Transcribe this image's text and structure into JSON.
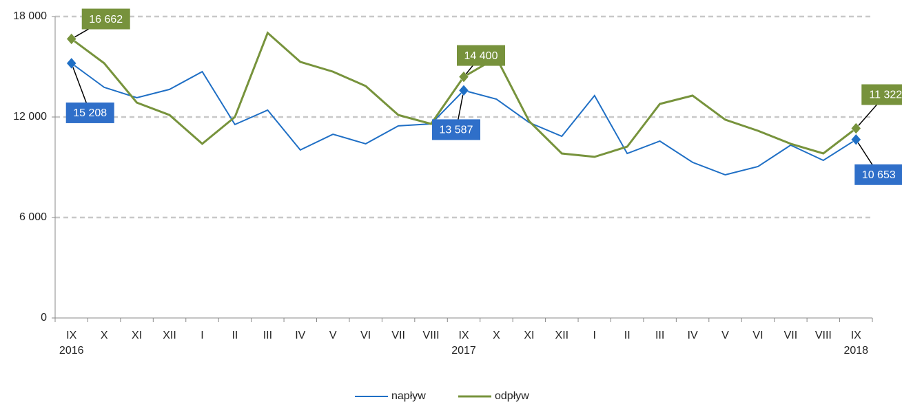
{
  "chart_data": {
    "type": "line",
    "categories": [
      "IX 2016",
      "X",
      "XI",
      "XII",
      "I",
      "II",
      "III",
      "IV",
      "V",
      "VI",
      "VII",
      "VIII",
      "IX 2017",
      "X",
      "XI",
      "XII",
      "I",
      "II",
      "III",
      "IV",
      "V",
      "VI",
      "VII",
      "VIII",
      "IX 2018"
    ],
    "series": [
      {
        "name": "napływ",
        "color": "#1f6fc5",
        "values": [
          15208,
          13770,
          13150,
          13650,
          14710,
          11550,
          12410,
          10030,
          10970,
          10400,
          11470,
          11590,
          13587,
          13070,
          11670,
          10850,
          13280,
          9820,
          10560,
          9290,
          8550,
          9040,
          10320,
          9410,
          10653
        ],
        "value_labels": [
          "15 208",
          null,
          null,
          null,
          null,
          null,
          null,
          null,
          null,
          null,
          null,
          null,
          "13 587",
          null,
          null,
          null,
          null,
          null,
          null,
          null,
          null,
          null,
          null,
          null,
          "10 653"
        ]
      },
      {
        "name": "odpływ",
        "color": "#77933c",
        "values": [
          16662,
          15210,
          12860,
          12120,
          10400,
          12000,
          17020,
          15290,
          14710,
          13850,
          12120,
          11590,
          14400,
          15540,
          11750,
          9820,
          9620,
          10230,
          12780,
          13280,
          11840,
          11180,
          10400,
          9820,
          11322
        ],
        "value_labels": [
          "16 662",
          null,
          null,
          null,
          null,
          null,
          null,
          null,
          null,
          null,
          null,
          null,
          "14 400",
          null,
          null,
          null,
          null,
          null,
          null,
          null,
          null,
          null,
          null,
          null,
          "11 322"
        ]
      }
    ],
    "ylim": [
      0,
      18000
    ],
    "yticks": [
      {
        "value": 0,
        "label": "0"
      },
      {
        "value": 6000,
        "label": "6 000"
      },
      {
        "value": 12000,
        "label": "12 000"
      },
      {
        "value": 18000,
        "label": "18 000"
      }
    ],
    "grid": true,
    "legend": "bottom"
  }
}
